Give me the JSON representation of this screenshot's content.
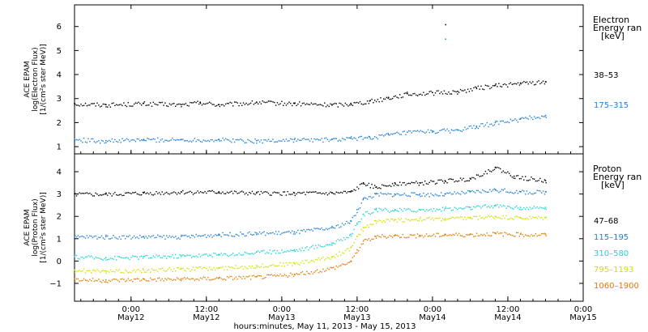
{
  "chart_data": [
    {
      "type": "scatter",
      "panel": "electron",
      "ylabel_lines": [
        "ACE EPAM",
        "log(Electron Flux)",
        "[1/(cm²s ster MeV)]"
      ],
      "legend_title_lines": [
        "Electron",
        "Energy ran",
        "[keV]"
      ],
      "ylim": [
        0.7,
        6.9
      ],
      "yticks": [
        1,
        2,
        3,
        4,
        5,
        6
      ],
      "series": [
        {
          "name": "38-53",
          "color": "#000000",
          "x": [
            "May11 15:00",
            "May11 20:00",
            "May12 02:00",
            "May12 08:00",
            "May12 11:00",
            "May12 14:00",
            "May12 20:00",
            "May13 02:00",
            "May13 08:00",
            "May13 11:00",
            "May13 14:00",
            "May13 17:00",
            "May13 20:00",
            "May14 00:00",
            "May14 04:00",
            "May14 07:00",
            "May14 10:00",
            "May14 14:00",
            "May14 18:00"
          ],
          "y": [
            2.8,
            2.75,
            2.8,
            2.75,
            2.85,
            2.75,
            2.85,
            2.8,
            2.75,
            2.8,
            2.9,
            3.05,
            3.2,
            3.25,
            3.3,
            3.45,
            3.55,
            3.65,
            3.7
          ]
        },
        {
          "name": "175-315",
          "color": "#1f7fd8",
          "x": [
            "May11 15:00",
            "May11 20:00",
            "May12 02:00",
            "May12 08:00",
            "May12 14:00",
            "May12 20:00",
            "May13 02:00",
            "May13 08:00",
            "May13 11:00",
            "May13 14:00",
            "May13 17:00",
            "May13 20:00",
            "May14 00:00",
            "May14 04:00",
            "May14 07:00",
            "May14 10:00",
            "May14 14:00",
            "May14 18:00"
          ],
          "y": [
            1.3,
            1.25,
            1.3,
            1.3,
            1.3,
            1.25,
            1.3,
            1.3,
            1.35,
            1.4,
            1.5,
            1.6,
            1.65,
            1.7,
            1.85,
            2.0,
            2.15,
            2.3
          ]
        }
      ],
      "annotations": [
        {
          "x": "May14 02:00",
          "y": 6.1,
          "color": "#000000"
        },
        {
          "x": "May14 02:00",
          "y": 5.5,
          "color": "#1f7fd8"
        }
      ]
    },
    {
      "type": "scatter",
      "panel": "proton",
      "ylabel_lines": [
        "ACE EPAM",
        "log(Proton Flux)",
        "[1/(cm²s ster MeV)]"
      ],
      "legend_title_lines": [
        "Proton",
        "Energy ran",
        "[keV]"
      ],
      "ylim": [
        -1.8,
        4.8
      ],
      "yticks": [
        -1,
        0,
        1,
        2,
        3,
        4
      ],
      "series": [
        {
          "name": "47-68",
          "color": "#000000",
          "x": [
            "May11 15:00",
            "May11 20:00",
            "May12 02:00",
            "May12 08:00",
            "May12 14:00",
            "May12 20:00",
            "May13 02:00",
            "May13 08:00",
            "May13 11:00",
            "May13 13:00",
            "May13 15:00",
            "May13 18:00",
            "May13 22:00",
            "May14 02:00",
            "May14 06:00",
            "May14 10:00",
            "May14 13:00",
            "May14 18:00"
          ],
          "y": [
            3.0,
            3.0,
            3.05,
            3.1,
            3.1,
            3.05,
            3.05,
            3.05,
            3.1,
            3.5,
            3.3,
            3.5,
            3.5,
            3.6,
            3.7,
            4.2,
            3.8,
            3.6
          ]
        },
        {
          "name": "115-195",
          "color": "#1f7fd8",
          "x": [
            "May11 15:00",
            "May11 20:00",
            "May12 02:00",
            "May12 08:00",
            "May12 14:00",
            "May12 20:00",
            "May13 02:00",
            "May13 08:00",
            "May13 11:00",
            "May13 12:00",
            "May13 13:00",
            "May13 15:00",
            "May13 18:00",
            "May13 22:00",
            "May14 02:00",
            "May14 06:00",
            "May14 10:00",
            "May14 14:00",
            "May14 18:00"
          ],
          "y": [
            1.1,
            1.1,
            1.1,
            1.1,
            1.2,
            1.25,
            1.3,
            1.5,
            1.8,
            2.3,
            2.8,
            3.0,
            3.0,
            3.0,
            3.0,
            3.1,
            3.2,
            3.1,
            3.1
          ]
        },
        {
          "name": "310-580",
          "color": "#22d3d3",
          "x": [
            "May11 15:00",
            "May11 20:00",
            "May12 02:00",
            "May12 08:00",
            "May12 14:00",
            "May12 20:00",
            "May13 02:00",
            "May13 08:00",
            "May13 11:00",
            "May13 12:00",
            "May13 13:00",
            "May13 15:00",
            "May13 18:00",
            "May13 22:00",
            "May14 02:00",
            "May14 06:00",
            "May14 10:00",
            "May14 14:00",
            "May14 18:00"
          ],
          "y": [
            0.2,
            0.15,
            0.2,
            0.25,
            0.3,
            0.4,
            0.5,
            0.8,
            1.2,
            1.7,
            2.1,
            2.3,
            2.3,
            2.3,
            2.35,
            2.4,
            2.5,
            2.4,
            2.4
          ]
        },
        {
          "name": "795-1193",
          "color": "#d2e000",
          "x": [
            "May11 15:00",
            "May11 20:00",
            "May12 02:00",
            "May12 08:00",
            "May12 14:00",
            "May12 20:00",
            "May13 02:00",
            "May13 08:00",
            "May13 11:00",
            "May13 12:00",
            "May13 13:00",
            "May13 15:00",
            "May13 18:00",
            "May13 22:00",
            "May14 02:00",
            "May14 06:00",
            "May14 10:00",
            "May14 14:00",
            "May14 18:00"
          ],
          "y": [
            -0.4,
            -0.45,
            -0.4,
            -0.35,
            -0.3,
            -0.2,
            -0.1,
            0.2,
            0.6,
            1.1,
            1.5,
            1.8,
            1.85,
            1.9,
            1.9,
            1.95,
            2.0,
            1.95,
            1.95
          ]
        },
        {
          "name": "1060-1900",
          "color": "#e07b00",
          "x": [
            "May11 15:00",
            "May11 20:00",
            "May12 02:00",
            "May12 08:00",
            "May12 14:00",
            "May12 20:00",
            "May13 02:00",
            "May13 08:00",
            "May13 11:00",
            "May13 12:00",
            "May13 13:00",
            "May13 15:00",
            "May13 18:00",
            "May13 22:00",
            "May14 02:00",
            "May14 06:00",
            "May14 10:00",
            "May14 14:00",
            "May14 18:00"
          ],
          "y": [
            -0.8,
            -0.85,
            -0.8,
            -0.8,
            -0.75,
            -0.7,
            -0.6,
            -0.3,
            0.0,
            0.5,
            0.9,
            1.1,
            1.15,
            1.15,
            1.2,
            1.2,
            1.25,
            1.2,
            1.2
          ]
        }
      ]
    }
  ],
  "x_axis": {
    "xlabel": "hours:minutes, May 11, 2013 - May 15, 2013",
    "ticks": [
      {
        "time": "May12 00:00",
        "line1": "0:00",
        "line2": "May12"
      },
      {
        "time": "May12 12:00",
        "line1": "12:00",
        "line2": "May12"
      },
      {
        "time": "May13 00:00",
        "line1": "0:00",
        "line2": "May13"
      },
      {
        "time": "May13 12:00",
        "line1": "12:00",
        "line2": "May13"
      },
      {
        "time": "May14 00:00",
        "line1": "0:00",
        "line2": "May14"
      },
      {
        "time": "May14 12:00",
        "line1": "12:00",
        "line2": "May14"
      },
      {
        "time": "May15 00:00",
        "line1": "0:00",
        "line2": "May15"
      }
    ],
    "start": "May11 15:00",
    "end": "May15 00:00"
  }
}
